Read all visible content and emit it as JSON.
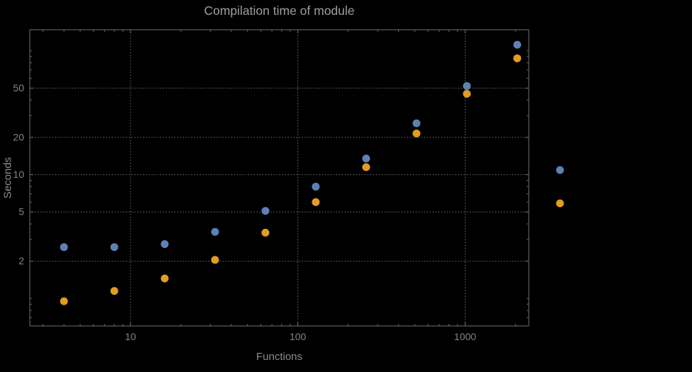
{
  "colors": {
    "background": "#000000",
    "frame": "#6f6f6f",
    "grid": "#5c5c5c",
    "title_text": "#9e9e9e",
    "axis_label_text": "#8c8c8c",
    "tick_text": "#848484"
  },
  "chart_data": {
    "type": "scatter",
    "title": "Compilation time of module",
    "xlabel": "Functions",
    "ylabel": "Seconds",
    "x_scale": "log",
    "y_scale": "log",
    "xlim": [
      2.5,
      2400
    ],
    "ylim": [
      0.6,
      148
    ],
    "x_ticks": [
      10,
      100,
      1000
    ],
    "y_ticks": [
      2,
      5,
      10,
      20,
      50
    ],
    "grid": "dotted",
    "legend_position": "right-outside",
    "x": [
      4,
      8,
      16,
      32,
      64,
      128,
      256,
      512,
      1024,
      2048
    ],
    "series": [
      {
        "name": "blue",
        "color": "#5e81b5",
        "values": [
          2.6,
          2.6,
          2.75,
          3.45,
          5.1,
          8.0,
          13.5,
          26,
          52,
          112
        ]
      },
      {
        "name": "orange",
        "color": "#e19c24",
        "values": [
          0.95,
          1.15,
          1.45,
          2.05,
          3.4,
          6.0,
          11.5,
          21.5,
          45,
          87
        ]
      }
    ]
  }
}
